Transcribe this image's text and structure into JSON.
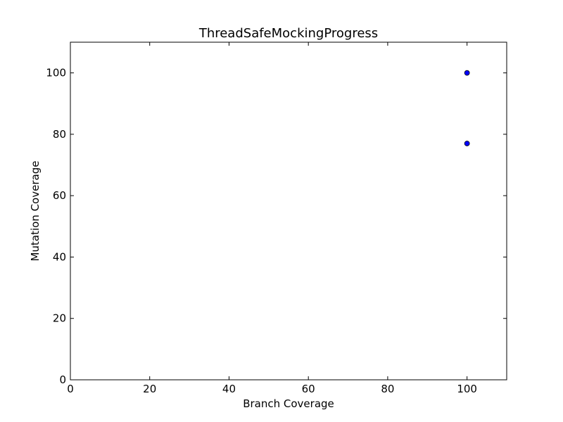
{
  "chart_data": {
    "type": "scatter",
    "title": "ThreadSafeMockingProgress",
    "xlabel": "Branch Coverage",
    "ylabel": "Mutation Coverage",
    "xlim": [
      0,
      110
    ],
    "ylim": [
      0,
      110
    ],
    "xticks": [
      0,
      20,
      40,
      60,
      80,
      100
    ],
    "yticks": [
      0,
      20,
      40,
      60,
      80,
      100
    ],
    "grid": false,
    "legend": "none",
    "colors": {
      "marker_fill": "#0000ff",
      "marker_edge": "#000000",
      "axes": "#000000",
      "background": "#ffffff"
    },
    "series": [
      {
        "points": [
          {
            "x": 100,
            "y": 100
          },
          {
            "x": 100,
            "y": 77
          }
        ]
      }
    ]
  }
}
